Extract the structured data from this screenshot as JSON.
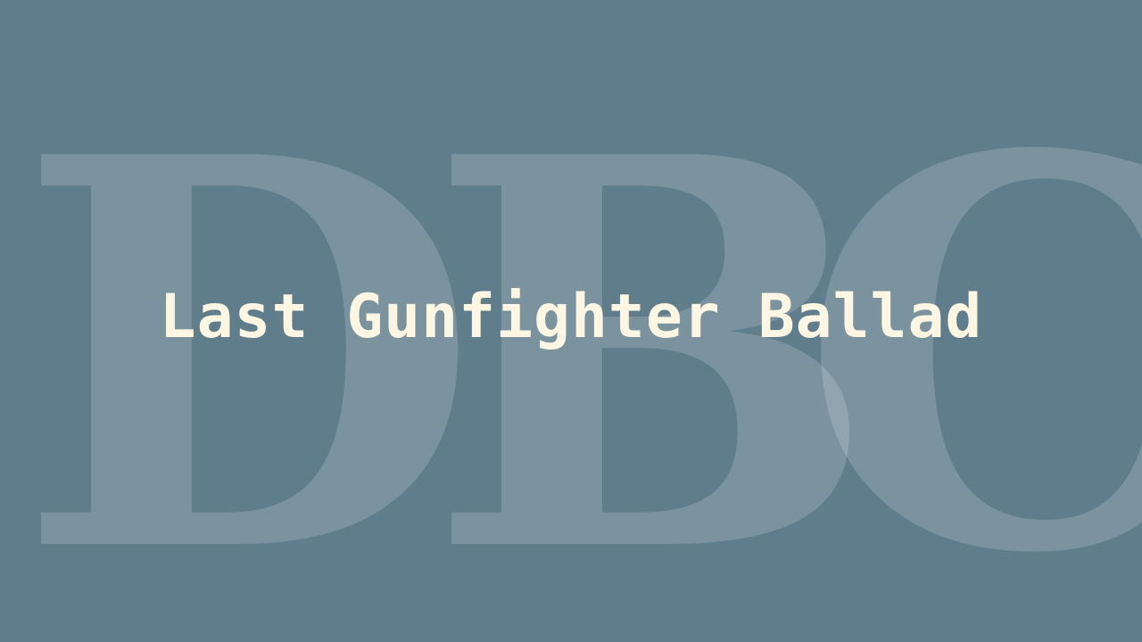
{
  "colors": {
    "background": "#607d8b",
    "title_text": "#fdf6e3",
    "watermark": "#ffffff"
  },
  "watermark": {
    "letters": [
      "D",
      "B",
      "C"
    ]
  },
  "title": "Last Gunfighter Ballad"
}
